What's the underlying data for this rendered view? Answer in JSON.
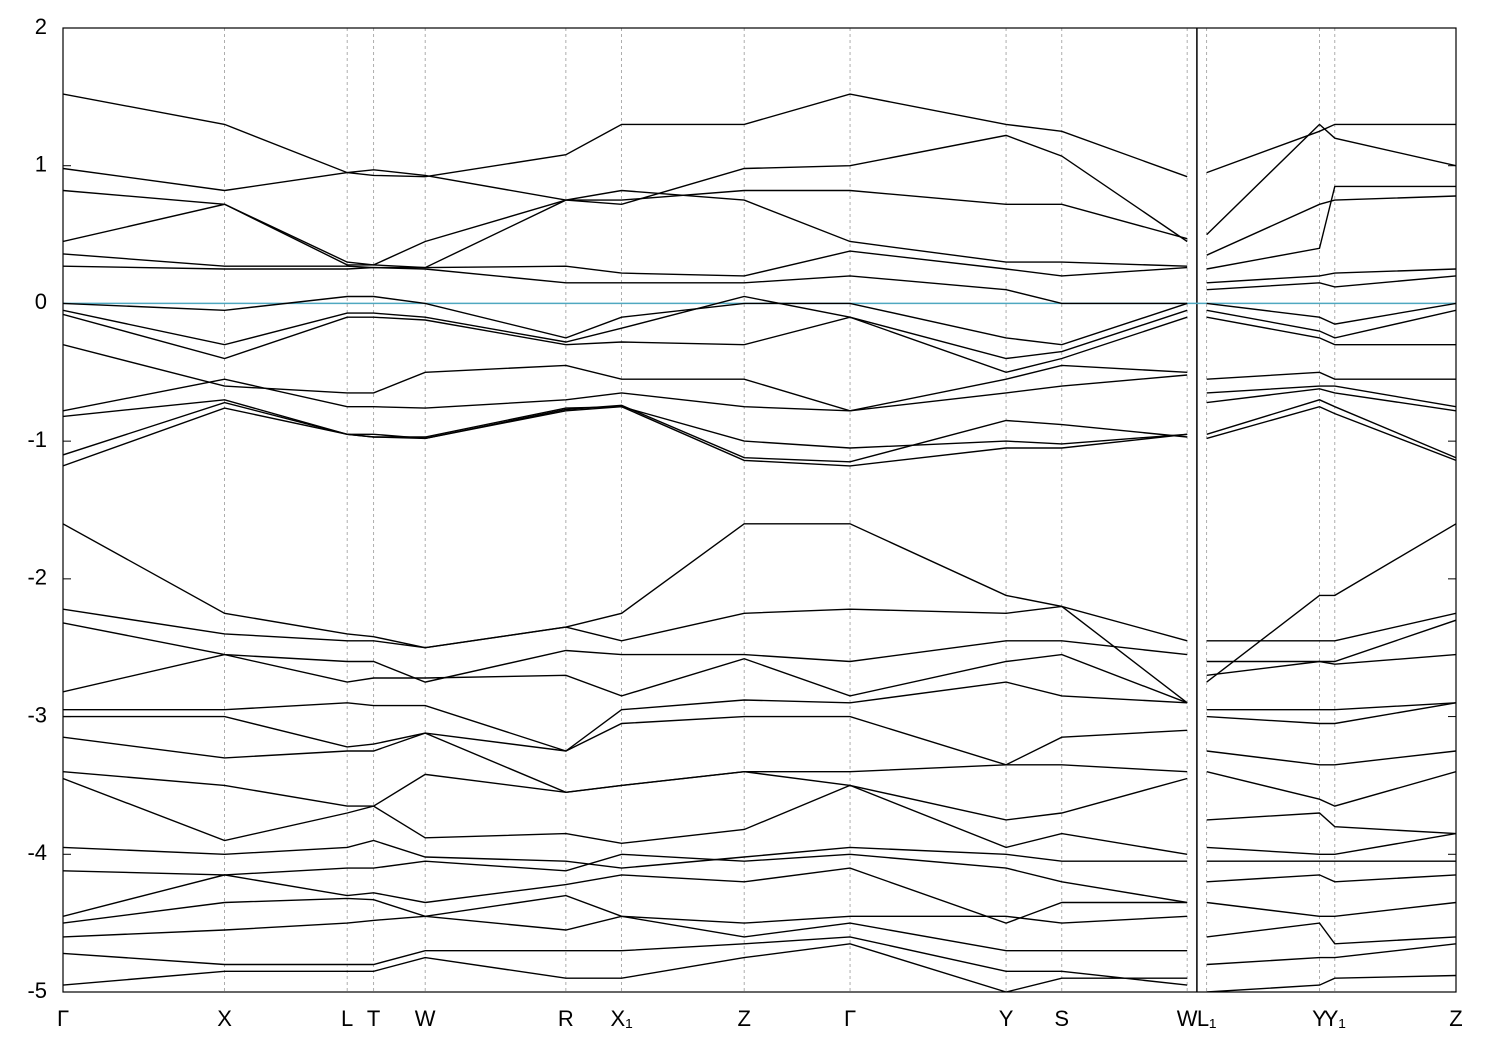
{
  "chart_data": {
    "type": "line",
    "x": [
      0,
      11.6,
      20.4,
      22.3,
      26.0,
      36.1,
      40.1,
      48.9,
      56.5,
      67.7,
      71.7,
      80.7,
      81.4,
      82.1,
      90.2,
      91.3,
      100
    ],
    "xlim": [
      0,
      100
    ],
    "xticks": [
      {
        "value": 0,
        "label": "Γ"
      },
      {
        "value": 11.6,
        "label": "X"
      },
      {
        "value": 20.4,
        "label": "L"
      },
      {
        "value": 22.3,
        "label": "T"
      },
      {
        "value": 26.0,
        "label": "W"
      },
      {
        "value": 36.1,
        "label": "R"
      },
      {
        "value": 40.1,
        "label": "X₁"
      },
      {
        "value": 48.9,
        "label": "Z"
      },
      {
        "value": 56.5,
        "label": "Γ"
      },
      {
        "value": 67.7,
        "label": "Y"
      },
      {
        "value": 71.7,
        "label": "S"
      },
      {
        "value": 80.7,
        "label": "W"
      },
      {
        "value": 82.1,
        "label": "L₁"
      },
      {
        "value": 90.2,
        "label": "Y"
      },
      {
        "value": 91.3,
        "label": "Y₁"
      },
      {
        "value": 100,
        "label": "Z"
      }
    ],
    "ylim": [
      -5,
      2
    ],
    "yticks": [
      -5,
      -4,
      -3,
      -2,
      -1,
      0,
      1,
      2
    ],
    "grid": true,
    "line_color": "#000000",
    "hlines": [
      {
        "value": 0,
        "color": "#4fa8c0"
      }
    ],
    "series": [
      {
        "values": [
          1.52,
          1.3,
          0.95,
          0.93,
          0.92,
          1.08,
          1.3,
          1.3,
          1.52,
          1.3,
          1.25,
          0.92,
          null,
          0.95,
          1.25,
          1.3,
          1.3
        ]
      },
      {
        "values": [
          0.98,
          0.82,
          0.95,
          0.97,
          0.93,
          0.75,
          0.72,
          0.98,
          1.0,
          1.22,
          1.07,
          0.45,
          null,
          0.5,
          1.3,
          1.2,
          1.0
        ]
      },
      {
        "values": [
          0.82,
          0.72,
          0.3,
          0.28,
          0.45,
          0.75,
          0.75,
          0.82,
          0.82,
          0.72,
          0.72,
          0.47,
          null,
          0.35,
          0.72,
          0.75,
          0.78
        ]
      },
      {
        "values": [
          0.45,
          0.72,
          0.28,
          0.28,
          0.26,
          0.75,
          0.82,
          0.75,
          0.45,
          0.3,
          0.3,
          0.27,
          null,
          0.25,
          0.4,
          0.85,
          0.85
        ]
      },
      {
        "values": [
          0.36,
          0.27,
          0.27,
          0.26,
          0.26,
          0.27,
          0.22,
          0.2,
          0.38,
          0.25,
          0.2,
          0.26,
          null,
          0.15,
          0.2,
          0.22,
          0.25
        ]
      },
      {
        "values": [
          0.27,
          0.25,
          0.25,
          0.26,
          0.25,
          0.15,
          0.15,
          0.15,
          0.2,
          0.1,
          0.0,
          0.0,
          null,
          0.1,
          0.15,
          0.12,
          0.2
        ]
      },
      {
        "values": [
          0.0,
          -0.05,
          0.05,
          0.05,
          0.0,
          -0.25,
          -0.1,
          0.0,
          0.0,
          -0.25,
          -0.3,
          0.0,
          null,
          0.0,
          -0.1,
          -0.15,
          0.0
        ]
      },
      {
        "values": [
          -0.05,
          -0.3,
          -0.07,
          -0.07,
          -0.1,
          -0.28,
          -0.18,
          0.05,
          -0.1,
          -0.4,
          -0.35,
          -0.05,
          null,
          -0.05,
          -0.2,
          -0.25,
          -0.05
        ]
      },
      {
        "values": [
          -0.08,
          -0.4,
          -0.1,
          -0.1,
          -0.12,
          -0.3,
          -0.28,
          -0.3,
          -0.1,
          -0.5,
          -0.4,
          -0.1,
          null,
          -0.1,
          -0.25,
          -0.3,
          -0.3
        ]
      },
      {
        "values": [
          -0.3,
          -0.6,
          -0.65,
          -0.65,
          -0.5,
          -0.45,
          -0.55,
          -0.55,
          -0.78,
          -0.55,
          -0.45,
          -0.5,
          null,
          -0.55,
          -0.5,
          -0.55,
          -0.55
        ]
      },
      {
        "values": [
          -0.78,
          -0.55,
          -0.75,
          -0.75,
          -0.76,
          -0.7,
          -0.65,
          -0.75,
          -0.78,
          -0.65,
          -0.6,
          -0.52,
          null,
          -0.65,
          -0.6,
          -0.6,
          -0.75
        ]
      },
      {
        "values": [
          -0.82,
          -0.7,
          -0.95,
          -0.97,
          -0.97,
          -0.76,
          -0.75,
          -1.0,
          -1.05,
          -1.0,
          -1.02,
          -0.95,
          null,
          -0.72,
          -0.62,
          -0.65,
          -0.78
        ]
      },
      {
        "values": [
          -1.1,
          -0.72,
          -0.95,
          -0.97,
          -0.98,
          -0.77,
          -0.74,
          -1.12,
          -1.15,
          -0.85,
          -0.88,
          -0.97,
          null,
          -0.95,
          -0.7,
          -0.75,
          -1.12
        ]
      },
      {
        "values": [
          -1.18,
          -0.76,
          -0.95,
          -0.95,
          -0.98,
          -0.78,
          -0.75,
          -1.14,
          -1.18,
          -1.05,
          -1.05,
          -0.95,
          null,
          -0.98,
          -0.75,
          -0.8,
          -1.14
        ]
      },
      {
        "values": [
          -1.6,
          -2.25,
          -2.4,
          -2.42,
          -2.5,
          -2.35,
          -2.25,
          -1.6,
          -1.6,
          -2.12,
          -2.2,
          -2.9,
          null,
          -2.75,
          -2.12,
          -2.12,
          -1.6
        ]
      },
      {
        "values": [
          -2.22,
          -2.4,
          -2.45,
          -2.45,
          -2.5,
          -2.35,
          -2.45,
          -2.25,
          -2.22,
          -2.25,
          -2.2,
          -2.45,
          null,
          -2.45,
          -2.45,
          -2.45,
          -2.25
        ]
      },
      {
        "values": [
          -2.32,
          -2.55,
          -2.6,
          -2.6,
          -2.75,
          -2.52,
          -2.55,
          -2.55,
          -2.6,
          -2.45,
          -2.45,
          -2.55,
          null,
          -2.6,
          -2.6,
          -2.6,
          -2.3
        ]
      },
      {
        "values": [
          -2.82,
          -2.55,
          -2.75,
          -2.72,
          -2.72,
          -2.7,
          -2.85,
          -2.58,
          -2.85,
          -2.6,
          -2.55,
          -2.9,
          null,
          -2.7,
          -2.6,
          -2.62,
          -2.55
        ]
      },
      {
        "values": [
          -2.95,
          -2.95,
          -2.9,
          -2.92,
          -2.92,
          -3.25,
          -2.95,
          -2.88,
          -2.9,
          -2.75,
          -2.85,
          -2.9,
          null,
          -2.95,
          -2.95,
          -2.95,
          -2.9
        ]
      },
      {
        "values": [
          -3.0,
          -3.0,
          -3.22,
          -3.2,
          -3.12,
          -3.25,
          -3.05,
          -3.0,
          -3.0,
          -3.35,
          -3.15,
          -3.1,
          null,
          -3.0,
          -3.05,
          -3.05,
          -2.9
        ]
      },
      {
        "values": [
          -3.15,
          -3.3,
          -3.25,
          -3.25,
          -3.12,
          -3.55,
          -3.5,
          -3.4,
          -3.4,
          -3.35,
          -3.35,
          -3.4,
          null,
          -3.25,
          -3.35,
          -3.35,
          -3.25
        ]
      },
      {
        "values": [
          -3.4,
          -3.5,
          -3.65,
          -3.65,
          -3.42,
          -3.55,
          -3.5,
          -3.4,
          -3.5,
          -3.75,
          -3.7,
          -3.45,
          null,
          -3.4,
          -3.6,
          -3.65,
          -3.4
        ]
      },
      {
        "values": [
          -3.45,
          -3.9,
          -3.7,
          -3.65,
          -3.88,
          -3.85,
          -3.92,
          -3.82,
          -3.5,
          -3.95,
          -3.85,
          -4.0,
          null,
          -3.75,
          -3.7,
          -3.8,
          -3.85
        ]
      },
      {
        "values": [
          -3.95,
          -4.0,
          -3.95,
          -3.9,
          -4.02,
          -4.05,
          -4.1,
          -4.02,
          -3.95,
          -4.0,
          -4.05,
          -4.05,
          null,
          -3.95,
          -4.0,
          -4.0,
          -3.85
        ]
      },
      {
        "values": [
          -4.12,
          -4.15,
          -4.1,
          -4.1,
          -4.05,
          -4.12,
          -4.0,
          -4.05,
          -4.0,
          -4.1,
          -4.2,
          -4.35,
          null,
          -4.05,
          -4.05,
          -4.05,
          -4.05
        ]
      },
      {
        "values": [
          -4.45,
          -4.15,
          -4.3,
          -4.28,
          -4.35,
          -4.22,
          -4.15,
          -4.2,
          -4.1,
          -4.5,
          -4.35,
          -4.35,
          null,
          -4.2,
          -4.15,
          -4.2,
          -4.15
        ]
      },
      {
        "values": [
          -4.5,
          -4.35,
          -4.32,
          -4.33,
          -4.45,
          -4.3,
          -4.45,
          -4.5,
          -4.45,
          -4.45,
          -4.5,
          -4.45,
          null,
          -4.35,
          -4.45,
          -4.45,
          -4.35
        ]
      },
      {
        "values": [
          -4.6,
          -4.55,
          -4.5,
          -4.48,
          -4.45,
          -4.55,
          -4.45,
          -4.6,
          -4.5,
          -4.7,
          -4.7,
          -4.7,
          null,
          -4.6,
          -4.5,
          -4.65,
          -4.6
        ]
      },
      {
        "values": [
          -4.72,
          -4.8,
          -4.8,
          -4.8,
          -4.7,
          -4.7,
          -4.7,
          -4.65,
          -4.6,
          -4.85,
          -4.85,
          -4.95,
          null,
          -4.8,
          -4.75,
          -4.75,
          -4.65
        ]
      },
      {
        "values": [
          -4.95,
          -4.85,
          -4.85,
          -4.85,
          -4.75,
          -4.9,
          -4.9,
          -4.75,
          -4.65,
          -5.0,
          -4.9,
          -4.9,
          null,
          -5.0,
          -4.95,
          -4.9,
          -4.88
        ]
      }
    ]
  }
}
